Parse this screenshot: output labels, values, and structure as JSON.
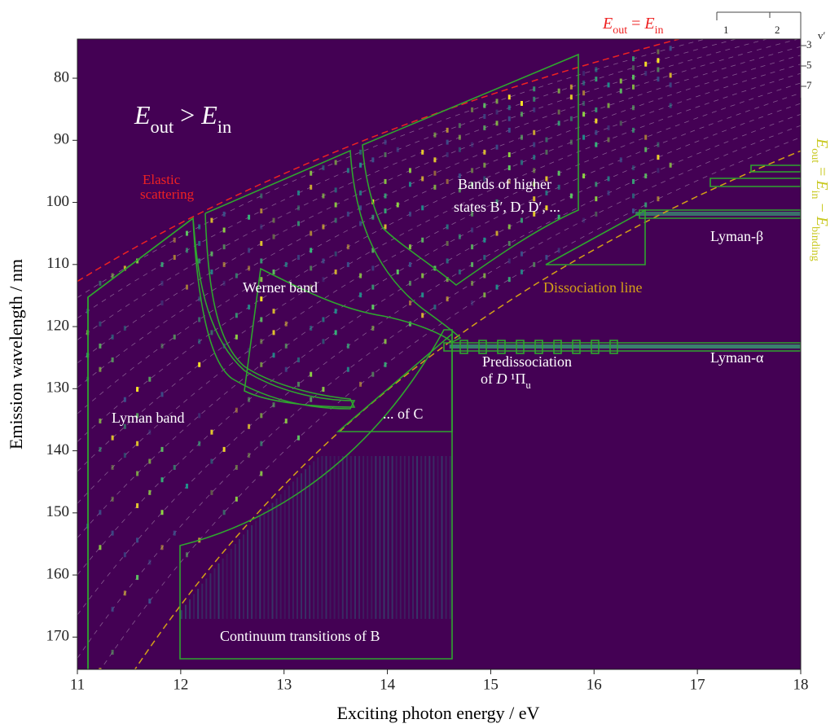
{
  "chart_data": {
    "type": "heatmap",
    "x_label": "Exciting photon energy / eV",
    "y_label": "Emission wavelength / nm",
    "xlim": [
      11,
      18
    ],
    "ylim": [
      175.2,
      73.7
    ],
    "xticks": [
      11,
      12,
      13,
      14,
      15,
      16,
      17,
      18
    ],
    "yticks": [
      80,
      90,
      100,
      110,
      120,
      130,
      140,
      150,
      160,
      170
    ],
    "background": "#440154",
    "annotations": [
      {
        "parts": [
          "E",
          "out",
          " > ",
          "E",
          "in"
        ],
        "color": "#ffffff"
      },
      {
        "parts": [
          "E",
          "out",
          " = ",
          "E",
          "in"
        ],
        "color": "#ee2222"
      },
      {
        "parts": [
          "E",
          "out",
          " = ",
          "E",
          "in",
          " − ",
          "E",
          "binding"
        ],
        "color": "#c8c81e"
      },
      {
        "text": "Elastic",
        "color": "#ee2222"
      },
      {
        "text": "scattering",
        "color": "#ee2222"
      },
      {
        "text": "Werner band",
        "color": "#ffffff"
      },
      {
        "text": "Lyman band",
        "color": "#ffffff"
      },
      {
        "text": "Bands of higher",
        "color": "#ffffff"
      },
      {
        "text": "states B′, D, D′, ...",
        "color": "#ffffff"
      },
      {
        "text": "Dissociation line",
        "color": "#d4a017"
      },
      {
        "text": "Lyman-β",
        "color": "#ffffff"
      },
      {
        "text": "Lyman-α",
        "color": "#ffffff"
      },
      {
        "text": "Predissociation",
        "color": "#ffffff"
      },
      {
        "parts": [
          "of ",
          "D",
          " ¹Π",
          "u"
        ],
        "color": "#ffffff"
      },
      {
        "text": "... of C",
        "color": "#ffffff"
      },
      {
        "text": "Continuum transitions of B",
        "color": "#ffffff"
      },
      {
        "text": "1",
        "color": "#222222"
      },
      {
        "text": "2",
        "color": "#222222"
      },
      {
        "text": "3",
        "color": "#222222"
      },
      {
        "text": "5",
        "color": "#222222"
      },
      {
        "text": "7",
        "color": "#222222"
      },
      {
        "text": "v′",
        "color": "#222222"
      }
    ]
  }
}
